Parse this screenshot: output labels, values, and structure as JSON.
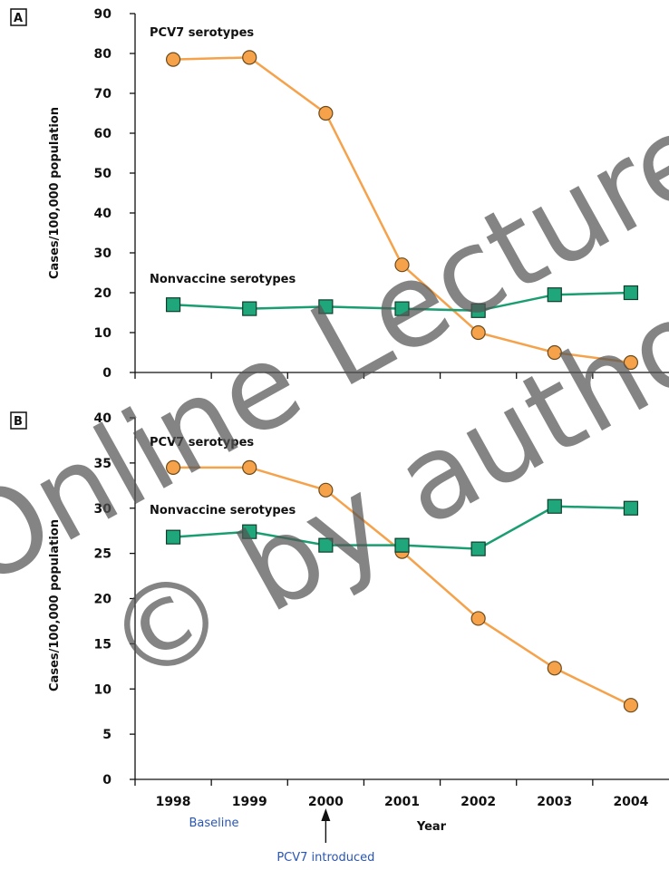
{
  "colors": {
    "pcv7": "#F5A24B",
    "pcv7_stroke": "#6a4a1c",
    "nonvaccine": "#1FA67A",
    "nonvaccine_line": "#1a9d72",
    "nonvaccine_stroke": "#0f3d2c",
    "note_blue": "#2a55b0"
  },
  "x_axis": {
    "title": "Year",
    "ticks": [
      "1998",
      "1999",
      "2000",
      "2001",
      "2002",
      "2003",
      "2004"
    ]
  },
  "annotations": {
    "baseline": "Baseline",
    "introduced": "PCV7 introduced"
  },
  "watermark": {
    "line1": "Online Lecture by",
    "line2": "© by author"
  },
  "chart_data": [
    {
      "type": "line",
      "panel": "A",
      "ylabel": "Cases/100,000 population",
      "ylim": [
        0,
        90
      ],
      "yticks": [
        0,
        10,
        20,
        30,
        40,
        50,
        60,
        70,
        80,
        90
      ],
      "categories": [
        "1998",
        "1999",
        "2000",
        "2001",
        "2002",
        "2003",
        "2004"
      ],
      "series": [
        {
          "name": "PCV7 serotypes",
          "marker": "circle",
          "values": [
            78.5,
            79,
            65,
            27,
            10,
            5,
            2.5
          ]
        },
        {
          "name": "Nonvaccine serotypes",
          "marker": "square",
          "values": [
            17,
            16,
            16.5,
            16,
            15.5,
            19.5,
            20
          ]
        }
      ]
    },
    {
      "type": "line",
      "panel": "B",
      "ylabel": "Cases/100,000 population",
      "ylim": [
        0,
        40
      ],
      "yticks": [
        0,
        5,
        10,
        15,
        20,
        25,
        30,
        35,
        40
      ],
      "categories": [
        "1998",
        "1999",
        "2000",
        "2001",
        "2002",
        "2003",
        "2004"
      ],
      "series": [
        {
          "name": "PCV7 serotypes",
          "marker": "circle",
          "values": [
            34.5,
            34.5,
            32,
            25.2,
            17.8,
            12.3,
            8.2
          ]
        },
        {
          "name": "Nonvaccine serotypes",
          "marker": "square",
          "values": [
            26.8,
            27.4,
            25.9,
            25.9,
            25.5,
            30.2,
            30
          ]
        }
      ]
    }
  ]
}
